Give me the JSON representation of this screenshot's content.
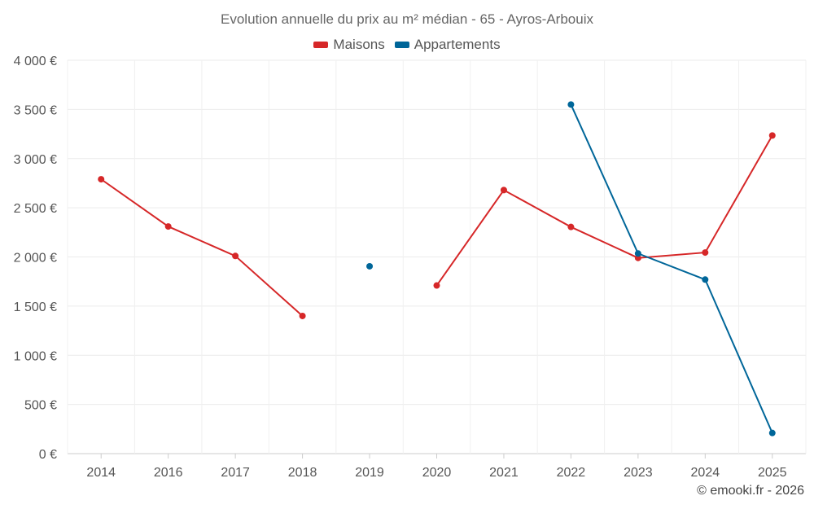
{
  "chart_data": {
    "type": "line",
    "title": "Evolution annuelle du prix au m² médian - 65 - Ayros-Arbouix",
    "categories": [
      "2014",
      "2016",
      "2017",
      "2018",
      "2019",
      "2020",
      "2021",
      "2022",
      "2023",
      "2024",
      "2025"
    ],
    "series": [
      {
        "name": "Maisons",
        "color": "#d62728",
        "values": [
          2790,
          2310,
          2010,
          1400,
          null,
          1710,
          2680,
          2305,
          1990,
          2045,
          3235
        ]
      },
      {
        "name": "Appartements",
        "color": "#006699",
        "values": [
          null,
          null,
          null,
          null,
          1905,
          null,
          null,
          3550,
          2035,
          1770,
          210
        ]
      }
    ],
    "ylim": [
      0,
      4000
    ],
    "yticks": [
      0,
      500,
      1000,
      1500,
      2000,
      2500,
      3000,
      3500,
      4000
    ],
    "ytick_labels": [
      "0 €",
      "500 €",
      "1 000 €",
      "1 500 €",
      "2 000 €",
      "2 500 €",
      "3 000 €",
      "3 500 €",
      "4 000 €"
    ],
    "xlabel": "",
    "ylabel": "",
    "grid": true,
    "legend_position": "top-center"
  },
  "credit": "© emooki.fr - 2026"
}
